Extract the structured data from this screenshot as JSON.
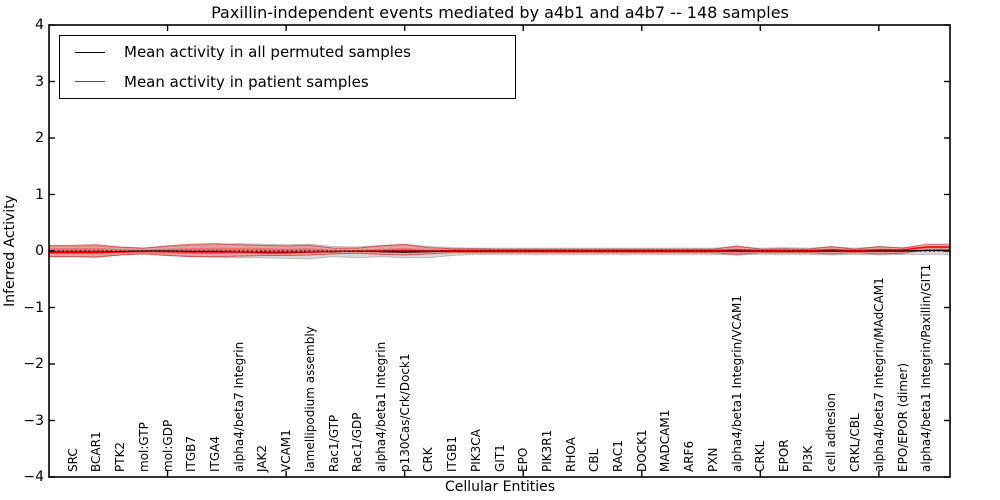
{
  "title": "Paxillin-independent events mediated by a4b1 and a4b7 -- 148 samples",
  "legend": {
    "items": [
      {
        "label": "Mean activity in all permuted samples",
        "color": "#000000"
      },
      {
        "label": "Mean activity in patient samples",
        "color": "#ff0000"
      }
    ]
  },
  "colors": {
    "background": "#ffffff",
    "axis": "#000000",
    "permuted_line": "#000000",
    "patient_line": "#ff0000",
    "permuted_band_fill": "rgba(130,130,130,0.30)",
    "permuted_band_edge": "rgba(130,130,130,0.45)",
    "patient_band_fill": "rgba(255,0,0,0.26)",
    "patient_band_edge": "rgba(205,35,35,0.65)",
    "patient_band_inner_fill": "rgba(255,0,0,0.30)",
    "zero_line": "#000000"
  },
  "chart_data": {
    "type": "area",
    "title": "Paxillin-independent events mediated by a4b1 and a4b7 -- 148 samples",
    "xlabel": "Cellular Entities",
    "ylabel": "Inferred Activity",
    "ylim": [
      -4,
      4
    ],
    "yticks": [
      "4",
      "3",
      "2",
      "1",
      "0",
      "−1",
      "−2",
      "−3",
      "−4"
    ],
    "ytick_values": [
      4,
      3,
      2,
      1,
      0,
      -1,
      -2,
      -3,
      -4
    ],
    "x_minor_tick_positions": [
      5,
      10,
      15,
      20,
      25,
      30,
      35
    ],
    "grid": false,
    "legend_position": "upper left",
    "categories": [
      "SRC",
      "BCAR1",
      "PTK2",
      "mol:GTP",
      "mol:GDP",
      "ITGB7",
      "ITGA4",
      "alpha4/beta7 Integrin",
      "JAK2",
      "VCAM1",
      "lamellipodium assembly",
      "Rac1/GTP",
      "Rac1/GDP",
      "alpha4/beta1 Integrin",
      "p130Cas/Crk/Dock1",
      "CRK",
      "ITGB1",
      "PIK3CA",
      "GIT1",
      "EPO",
      "PIK3R1",
      "RHOA",
      "CBL",
      "RAC1",
      "DOCK1",
      "MADCAM1",
      "ARF6",
      "PXN",
      "alpha4/beta1 Integrin/VCAM1",
      "CRKL",
      "EPOR",
      "PI3K",
      "cell adhesion",
      "CRKL/CBL",
      "alpha4/beta7 Integrin/MAdCAM1",
      "EPO/EPOR (dimer)",
      "alpha4/beta1 Integrin/Paxillin/GIT1"
    ],
    "series": [
      {
        "name": "Permuted samples activity range",
        "type": "band",
        "color_key": "permuted_band",
        "upper": [
          0.08,
          0.09,
          0.06,
          0.05,
          0.08,
          0.1,
          0.11,
          0.13,
          0.12,
          0.11,
          0.12,
          0.08,
          0.07,
          0.1,
          0.11,
          0.08,
          0.06,
          0.05,
          0.05,
          0.05,
          0.05,
          0.05,
          0.05,
          0.05,
          0.05,
          0.05,
          0.05,
          0.05,
          0.07,
          0.05,
          0.06,
          0.05,
          0.07,
          0.05,
          0.07,
          0.06,
          0.08
        ],
        "lower": [
          -0.1,
          -0.1,
          -0.07,
          -0.05,
          -0.08,
          -0.1,
          -0.11,
          -0.12,
          -0.12,
          -0.13,
          -0.14,
          -0.1,
          -0.12,
          -0.1,
          -0.12,
          -0.12,
          -0.08,
          -0.06,
          -0.06,
          -0.06,
          -0.06,
          -0.06,
          -0.06,
          -0.06,
          -0.06,
          -0.06,
          -0.06,
          -0.06,
          -0.07,
          -0.06,
          -0.06,
          -0.06,
          -0.07,
          -0.06,
          -0.07,
          -0.06,
          -0.06
        ]
      },
      {
        "name": "Patient samples activity range",
        "type": "band",
        "color_key": "patient_band",
        "upper": [
          0.1,
          0.11,
          0.07,
          0.05,
          0.09,
          0.12,
          0.13,
          0.11,
          0.1,
          0.09,
          0.1,
          0.05,
          0.05,
          0.09,
          0.12,
          0.06,
          0.04,
          0.04,
          0.03,
          0.03,
          0.03,
          0.03,
          0.03,
          0.03,
          0.03,
          0.03,
          0.03,
          0.03,
          0.09,
          0.03,
          0.04,
          0.03,
          0.08,
          0.03,
          0.08,
          0.05,
          0.12
        ],
        "lower": [
          -0.1,
          -0.11,
          -0.07,
          -0.05,
          -0.08,
          -0.1,
          -0.1,
          -0.09,
          -0.08,
          -0.08,
          -0.07,
          -0.05,
          -0.04,
          -0.06,
          -0.07,
          -0.05,
          -0.03,
          -0.03,
          -0.03,
          -0.03,
          -0.03,
          -0.03,
          -0.03,
          -0.03,
          -0.03,
          -0.03,
          -0.03,
          -0.03,
          -0.06,
          -0.03,
          -0.03,
          -0.03,
          -0.05,
          -0.03,
          -0.05,
          -0.04,
          0.02
        ]
      },
      {
        "name": "Patient samples inner range",
        "type": "band",
        "color_key": "patient_band_inner",
        "upper": [
          0.05,
          0.05,
          0.03,
          0.02,
          0.04,
          0.05,
          0.06,
          0.05,
          0.05,
          0.04,
          0.05,
          0.02,
          0.02,
          0.04,
          0.05,
          0.03,
          0.02,
          0.02,
          0.015,
          0.015,
          0.015,
          0.015,
          0.015,
          0.015,
          0.015,
          0.015,
          0.015,
          0.015,
          0.04,
          0.015,
          0.02,
          0.015,
          0.04,
          0.015,
          0.04,
          0.02,
          0.09
        ],
        "lower": [
          -0.05,
          -0.05,
          -0.03,
          -0.02,
          -0.04,
          -0.05,
          -0.05,
          -0.04,
          -0.04,
          -0.04,
          -0.03,
          -0.02,
          -0.02,
          -0.03,
          -0.03,
          -0.02,
          -0.015,
          -0.015,
          -0.015,
          -0.015,
          -0.015,
          -0.015,
          -0.015,
          -0.015,
          -0.015,
          -0.015,
          -0.015,
          -0.015,
          -0.03,
          -0.015,
          -0.015,
          -0.015,
          -0.02,
          -0.015,
          -0.02,
          -0.02,
          0.05
        ]
      },
      {
        "name": "Mean activity in all permuted samples",
        "type": "line",
        "color_key": "permuted_line",
        "values": [
          -0.02,
          -0.02,
          -0.01,
          0,
          0,
          -0.01,
          -0.01,
          -0.02,
          -0.03,
          -0.03,
          -0.02,
          -0.01,
          0,
          -0.01,
          -0.02,
          -0.01,
          0,
          0,
          0,
          0,
          0,
          0,
          0,
          0,
          0,
          0,
          0,
          0,
          0,
          0,
          0,
          0,
          0,
          0,
          0,
          0,
          0.01
        ]
      },
      {
        "name": "Mean activity in patient samples",
        "type": "line",
        "color_key": "patient_line",
        "values": [
          -0.03,
          -0.03,
          -0.02,
          -0.01,
          -0.01,
          -0.02,
          -0.02,
          -0.02,
          -0.02,
          -0.02,
          -0.02,
          -0.01,
          0,
          0,
          0.01,
          0,
          0.01,
          0.01,
          0.01,
          0.01,
          0.01,
          0.01,
          0.01,
          0.01,
          0.01,
          0.01,
          0.01,
          0.01,
          0.02,
          0.01,
          0.01,
          0.01,
          0.02,
          0.01,
          0.02,
          0.02,
          0.07
        ]
      },
      {
        "name": "Zero reference",
        "type": "dotted-line",
        "value": 0,
        "color_key": "zero_line"
      }
    ]
  }
}
